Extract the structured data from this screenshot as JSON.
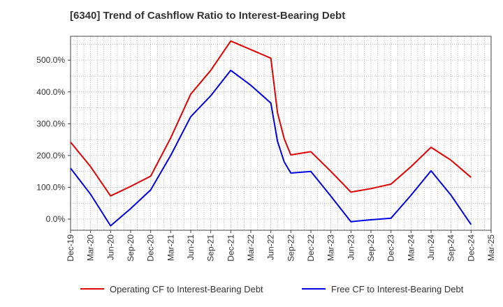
{
  "chart_data": {
    "type": "line",
    "title": "[6340]  Trend of Cashflow Ratio to Interest-Bearing Debt",
    "xlabel": "",
    "ylabel": "",
    "x_ticks": [
      "Dec-19",
      "Mar-20",
      "Jun-20",
      "Sep-20",
      "Dec-20",
      "Mar-21",
      "Jun-21",
      "Sep-21",
      "Dec-21",
      "Mar-22",
      "Jun-22",
      "Sep-22",
      "Dec-22",
      "Mar-23",
      "Jun-23",
      "Sep-23",
      "Dec-23",
      "Mar-24",
      "Jun-24",
      "Sep-24",
      "Dec-24",
      "Mar-25"
    ],
    "y_ticks": [
      "0.0%",
      "100.0%",
      "200.0%",
      "300.0%",
      "400.0%",
      "500.0%"
    ],
    "y_tick_values": [
      0,
      100,
      200,
      300,
      400,
      500
    ],
    "ylim": [
      -35,
      575
    ],
    "grid": true,
    "legend_position": "bottom",
    "series": [
      {
        "name": "Operating CF to Interest-Bearing Debt",
        "color": "#e00000",
        "points": [
          [
            "Dec-19",
            242
          ],
          [
            "Mar-20",
            165
          ],
          [
            "Jun-20",
            73
          ],
          [
            "Sep-20",
            103
          ],
          [
            "Dec-20",
            135
          ],
          [
            "Mar-21",
            255
          ],
          [
            "Jun-21",
            393
          ],
          [
            "Sep-21",
            468
          ],
          [
            "Dec-21",
            560
          ],
          [
            "Mar-22",
            533
          ],
          [
            "Jun-22",
            506
          ],
          [
            "Jul-22",
            335
          ],
          [
            "Aug-22",
            253
          ],
          [
            "Sep-22",
            202
          ],
          [
            "Dec-22",
            212
          ],
          [
            "Mar-23",
            150
          ],
          [
            "Jun-23",
            85
          ],
          [
            "Sep-23",
            96
          ],
          [
            "Dec-23",
            110
          ],
          [
            "Mar-24",
            165
          ],
          [
            "Jun-24",
            226
          ],
          [
            "Sep-24",
            185
          ],
          [
            "Dec-24",
            131
          ]
        ]
      },
      {
        "name": "Free CF to Interest-Bearing Debt",
        "color": "#0000e0",
        "points": [
          [
            "Dec-19",
            160
          ],
          [
            "Mar-20",
            78
          ],
          [
            "Jun-20",
            -21
          ],
          [
            "Sep-20",
            33
          ],
          [
            "Dec-20",
            92
          ],
          [
            "Mar-21",
            200
          ],
          [
            "Jun-21",
            322
          ],
          [
            "Sep-21",
            388
          ],
          [
            "Dec-21",
            468
          ],
          [
            "Mar-22",
            421
          ],
          [
            "Jun-22",
            365
          ],
          [
            "Jul-22",
            245
          ],
          [
            "Aug-22",
            180
          ],
          [
            "Sep-22",
            145
          ],
          [
            "Dec-22",
            150
          ],
          [
            "Mar-23",
            72
          ],
          [
            "Jun-23",
            -8
          ],
          [
            "Sep-23",
            -2
          ],
          [
            "Dec-23",
            3
          ],
          [
            "Mar-24",
            75
          ],
          [
            "Jun-24",
            152
          ],
          [
            "Sep-24",
            75
          ],
          [
            "Dec-24",
            -17
          ]
        ]
      }
    ]
  }
}
